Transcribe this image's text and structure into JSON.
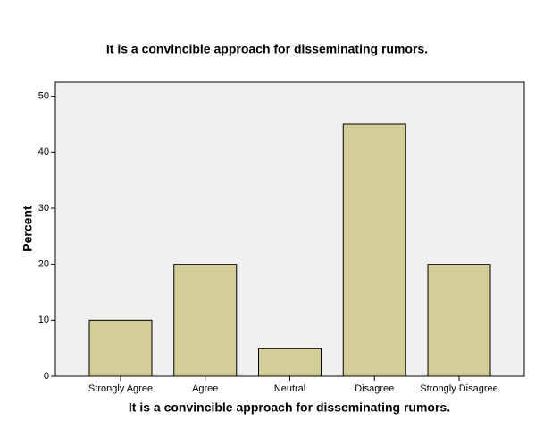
{
  "chart_data": {
    "type": "bar",
    "title": "It is a convincible approach for disseminating rumors.",
    "x_label": "It is a convincible approach for disseminating rumors.",
    "y_label": "Percent",
    "categories": [
      "Strongly Agree",
      "Agree",
      "Neutral",
      "Disagree",
      "Strongly Disagree"
    ],
    "values": [
      10,
      20,
      5,
      45,
      20
    ],
    "color": "#d3ce97",
    "ylim": [
      0,
      52.5
    ],
    "yticks": [
      0,
      10,
      20,
      30,
      40,
      50
    ],
    "grid": false
  }
}
